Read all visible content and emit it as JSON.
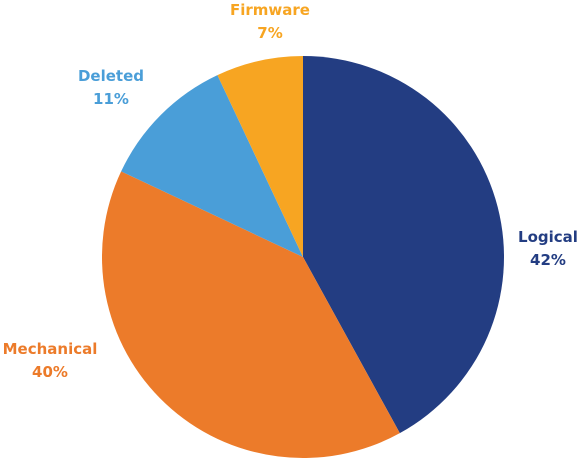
{
  "chart_data": {
    "type": "pie",
    "start_angle": "12 o'clock",
    "direction": "clockwise",
    "slices": [
      {
        "name": "Logical",
        "value": 42,
        "label": "Logical",
        "pct_label": "42%",
        "color": "#233D82"
      },
      {
        "name": "Mechanical",
        "value": 40,
        "label": "Mechanical",
        "pct_label": "40%",
        "color": "#EC7B2A"
      },
      {
        "name": "Deleted",
        "value": 11,
        "label": "Deleted",
        "pct_label": "11%",
        "color": "#4A9ED8"
      },
      {
        "name": "Firmware",
        "value": 7,
        "label": "Firmware",
        "pct_label": "7%",
        "color": "#F7A522"
      }
    ],
    "legend": "none"
  }
}
